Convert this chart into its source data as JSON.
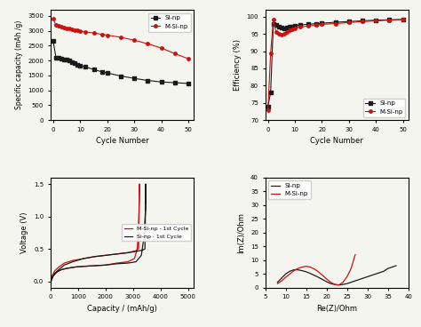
{
  "top_left": {
    "sinp_x": [
      0,
      1,
      2,
      3,
      4,
      5,
      6,
      7,
      8,
      9,
      10,
      12,
      15,
      18,
      20,
      25,
      30,
      35,
      40,
      45,
      50
    ],
    "sinp_y": [
      2650,
      2100,
      2080,
      2060,
      2040,
      2020,
      2000,
      1950,
      1900,
      1860,
      1830,
      1780,
      1700,
      1620,
      1580,
      1480,
      1400,
      1330,
      1280,
      1255,
      1230
    ],
    "msinp_x": [
      0,
      1,
      2,
      3,
      4,
      5,
      6,
      7,
      8,
      9,
      10,
      12,
      15,
      18,
      20,
      25,
      30,
      35,
      40,
      45,
      50
    ],
    "msinp_y": [
      3400,
      3180,
      3150,
      3130,
      3110,
      3090,
      3070,
      3050,
      3030,
      3010,
      2990,
      2960,
      2920,
      2880,
      2850,
      2780,
      2680,
      2560,
      2420,
      2230,
      2060
    ],
    "xlabel": "Cycle Number",
    "ylabel": "Specific capacity (mAh /g)",
    "ylim": [
      0,
      3700
    ],
    "xlim": [
      -1,
      52
    ],
    "yticks": [
      0,
      500,
      1000,
      1500,
      2000,
      2500,
      3000,
      3500
    ],
    "xticks": [
      0,
      10,
      20,
      30,
      40,
      50
    ]
  },
  "top_right": {
    "sinp_x": [
      0,
      1,
      2,
      3,
      4,
      5,
      6,
      7,
      8,
      9,
      10,
      12,
      15,
      18,
      20,
      25,
      30,
      35,
      40,
      45,
      50
    ],
    "sinp_y": [
      74,
      78,
      98,
      97.5,
      97,
      96.8,
      96.5,
      96.8,
      97.0,
      97.2,
      97.4,
      97.6,
      97.8,
      98.0,
      98.1,
      98.4,
      98.6,
      98.8,
      99.0,
      99.1,
      99.2
    ],
    "msinp_x": [
      0,
      1,
      2,
      3,
      4,
      5,
      6,
      7,
      8,
      9,
      10,
      12,
      15,
      18,
      20,
      25,
      30,
      35,
      40,
      45,
      50
    ],
    "msinp_y": [
      73,
      89.5,
      99.2,
      95.5,
      95.0,
      94.8,
      95.0,
      95.5,
      96.0,
      96.3,
      96.7,
      97.0,
      97.3,
      97.6,
      97.8,
      98.0,
      98.3,
      98.6,
      98.8,
      99.0,
      99.2
    ],
    "xlabel": "Cycle Number",
    "ylabel": "Efficiency (%)",
    "ylim": [
      70,
      102
    ],
    "xlim": [
      -1,
      52
    ],
    "yticks": [
      70,
      75,
      80,
      85,
      90,
      95,
      100
    ],
    "xticks": [
      0,
      10,
      20,
      30,
      40,
      50
    ]
  },
  "bottom_left": {
    "msinp_x": [
      0,
      30,
      80,
      150,
      250,
      400,
      600,
      900,
      1200,
      1600,
      2000,
      2400,
      2800,
      3050,
      3150,
      3200,
      3220,
      3230,
      3200,
      3100,
      2800,
      2400,
      2000,
      1600,
      1200,
      800,
      500,
      300,
      150,
      80,
      30,
      0
    ],
    "msinp_y": [
      0.02,
      0.05,
      0.08,
      0.11,
      0.15,
      0.18,
      0.2,
      0.22,
      0.23,
      0.24,
      0.25,
      0.28,
      0.3,
      0.35,
      0.5,
      0.8,
      1.2,
      1.5,
      0.5,
      0.47,
      0.44,
      0.42,
      0.4,
      0.38,
      0.35,
      0.32,
      0.28,
      0.22,
      0.16,
      0.1,
      0.05,
      -0.02
    ],
    "sinp_x": [
      0,
      30,
      80,
      150,
      250,
      400,
      600,
      900,
      1200,
      1600,
      2000,
      2400,
      2800,
      3100,
      3300,
      3400,
      3450,
      3460,
      3430,
      3350,
      3100,
      2800,
      2400,
      2000,
      1600,
      1200,
      800,
      500,
      300,
      150,
      80,
      30,
      0
    ],
    "sinp_y": [
      0.02,
      0.05,
      0.08,
      0.11,
      0.15,
      0.18,
      0.2,
      0.22,
      0.23,
      0.24,
      0.25,
      0.27,
      0.28,
      0.3,
      0.4,
      0.7,
      1.1,
      1.5,
      0.5,
      0.48,
      0.46,
      0.44,
      0.42,
      0.4,
      0.38,
      0.35,
      0.3,
      0.25,
      0.18,
      0.12,
      0.06,
      0.01,
      -0.03
    ],
    "xlabel": "Capacity / (mAh/g)",
    "ylabel": "Voltage (V)",
    "ylim": [
      -0.1,
      1.6
    ],
    "xlim": [
      0,
      5200
    ],
    "yticks": [
      0.0,
      0.5,
      1.0,
      1.5
    ],
    "xticks": [
      0,
      1000,
      2000,
      3000,
      4000,
      5000
    ]
  },
  "bottom_right": {
    "sinp_re": [
      8,
      9,
      10,
      11,
      12,
      13,
      14,
      15,
      16,
      17,
      18,
      19,
      20,
      21,
      22,
      23,
      24,
      25,
      26,
      27,
      28,
      29,
      30,
      31,
      32,
      33,
      34,
      35,
      36,
      37
    ],
    "sinp_im": [
      2,
      3.5,
      5.0,
      6.0,
      6.5,
      6.5,
      6.2,
      5.8,
      5.2,
      4.5,
      3.8,
      3.0,
      2.2,
      1.5,
      1.2,
      1.0,
      1.2,
      1.5,
      2.0,
      2.5,
      3.0,
      3.5,
      4.0,
      4.5,
      5.0,
      5.5,
      6.0,
      7.0,
      7.5,
      8.0
    ],
    "msinp_re": [
      8,
      9,
      10,
      11,
      12,
      13,
      14,
      15,
      16,
      17,
      18,
      19,
      20,
      21,
      22,
      23,
      24,
      25,
      26,
      27
    ],
    "msinp_im": [
      1.5,
      2.5,
      3.8,
      5.0,
      6.2,
      7.0,
      7.5,
      7.8,
      7.5,
      6.8,
      5.8,
      4.5,
      3.2,
      2.0,
      1.2,
      1.0,
      2.0,
      4.0,
      7.0,
      12.0
    ],
    "xlabel": "Re(Z)/Ohm",
    "ylabel": "Im(Z)/Ohm",
    "ylim": [
      0,
      40
    ],
    "xlim": [
      5,
      40
    ],
    "yticks": [
      0,
      5,
      10,
      15,
      20,
      25,
      30,
      35,
      40
    ],
    "xticks": [
      5,
      10,
      15,
      20,
      25,
      30,
      35,
      40
    ]
  },
  "colors": {
    "black": "#1a1a1a",
    "red": "#cc1111"
  },
  "bg_color": "#f5f5f0"
}
